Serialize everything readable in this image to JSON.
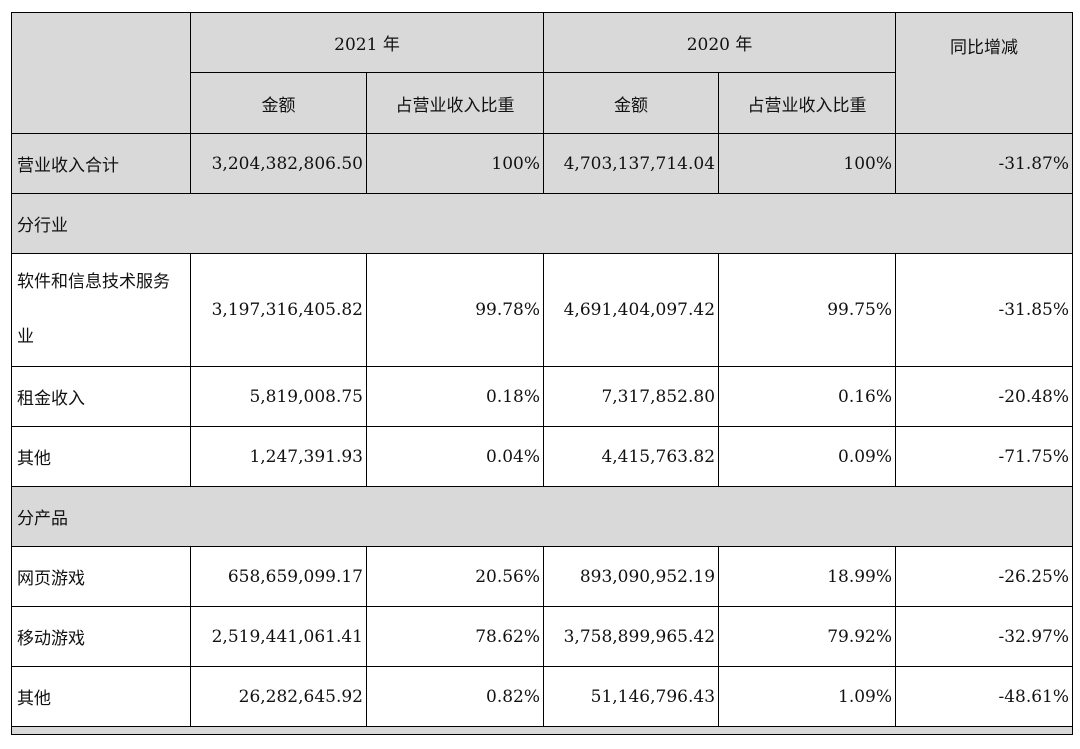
{
  "header": {
    "year_2021": "2021 年",
    "year_2020": "2020 年",
    "yoy": "同比增减",
    "amount": "金额",
    "ratio": "占营业收入比重"
  },
  "total": {
    "label": "营业收入合计",
    "amt_2021": "3,204,382,806.50",
    "pct_2021": "100%",
    "amt_2020": "4,703,137,714.04",
    "pct_2020": "100%",
    "yoy": "-31.87%"
  },
  "sections": {
    "industry": "分行业",
    "product": "分产品"
  },
  "industry_rows": [
    {
      "label": "软件和信息技术服务业",
      "amt_2021": "3,197,316,405.82",
      "pct_2021": "99.78%",
      "amt_2020": "4,691,404,097.42",
      "pct_2020": "99.75%",
      "yoy": "-31.85%"
    },
    {
      "label": "租金收入",
      "amt_2021": "5,819,008.75",
      "pct_2021": "0.18%",
      "amt_2020": "7,317,852.80",
      "pct_2020": "0.16%",
      "yoy": "-20.48%"
    },
    {
      "label": "其他",
      "amt_2021": "1,247,391.93",
      "pct_2021": "0.04%",
      "amt_2020": "4,415,763.82",
      "pct_2020": "0.09%",
      "yoy": "-71.75%"
    }
  ],
  "product_rows": [
    {
      "label": "网页游戏",
      "amt_2021": "658,659,099.17",
      "pct_2021": "20.56%",
      "amt_2020": "893,090,952.19",
      "pct_2020": "18.99%",
      "yoy": "-26.25%"
    },
    {
      "label": "移动游戏",
      "amt_2021": "2,519,441,061.41",
      "pct_2021": "78.62%",
      "amt_2020": "3,758,899,965.42",
      "pct_2020": "79.92%",
      "yoy": "-32.97%"
    },
    {
      "label": "其他",
      "amt_2021": "26,282,645.92",
      "pct_2021": "0.82%",
      "amt_2020": "51,146,796.43",
      "pct_2020": "1.09%",
      "yoy": "-48.61%"
    }
  ]
}
